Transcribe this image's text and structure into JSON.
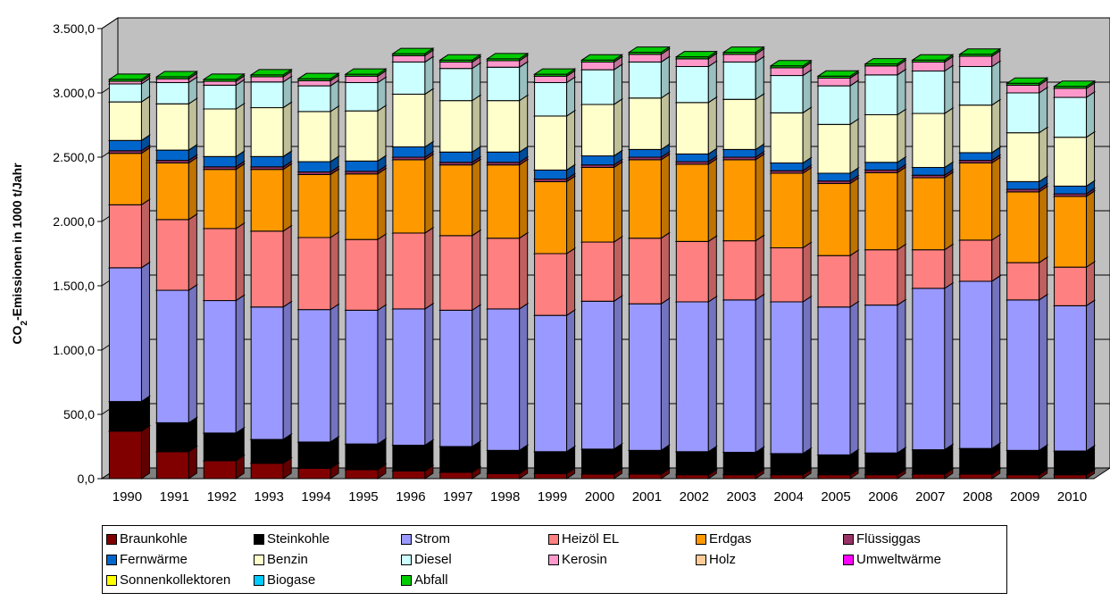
{
  "chart_data": {
    "type": "bar",
    "stacked": true,
    "three_d": true,
    "ylabel": "CO2-Emissionen in 1000 t/Jahr",
    "ylabel_main": "CO",
    "ylabel_sub": "2",
    "ylabel_rest": "-Emissionen in 1000 t/Jahr",
    "ylim": [
      0,
      3500
    ],
    "yticks": [
      "0,0",
      "500,0",
      "1.000,0",
      "1.500,0",
      "2.000,0",
      "2.500,0",
      "3.000,0",
      "3.500,0"
    ],
    "grid": true,
    "legend_position": "bottom",
    "categories": [
      "1990",
      "1991",
      "1992",
      "1993",
      "1994",
      "1995",
      "1996",
      "1997",
      "1998",
      "1999",
      "2000",
      "2001",
      "2002",
      "2003",
      "2004",
      "2005",
      "2006",
      "2007",
      "2008",
      "2009",
      "2010"
    ],
    "series": [
      {
        "name": "Braunkohle",
        "color": "#800000",
        "values": [
          370,
          210,
          140,
          120,
          80,
          70,
          60,
          50,
          40,
          40,
          35,
          35,
          30,
          30,
          30,
          30,
          30,
          35,
          35,
          30,
          30
        ]
      },
      {
        "name": "Steinkohle",
        "color": "#000000",
        "values": [
          230,
          225,
          215,
          185,
          205,
          200,
          200,
          200,
          180,
          170,
          195,
          185,
          180,
          175,
          165,
          155,
          170,
          190,
          200,
          190,
          185
        ]
      },
      {
        "name": "Strom",
        "color": "#9999ff",
        "values": [
          1040,
          1030,
          1030,
          1030,
          1030,
          1040,
          1060,
          1060,
          1100,
          1060,
          1150,
          1140,
          1165,
          1185,
          1180,
          1150,
          1150,
          1255,
          1300,
          1170,
          1130
        ]
      },
      {
        "name": "Heizöl EL",
        "color": "#ff8080",
        "values": [
          490,
          550,
          560,
          590,
          560,
          550,
          590,
          580,
          550,
          480,
          460,
          510,
          470,
          460,
          420,
          400,
          430,
          300,
          320,
          290,
          300
        ]
      },
      {
        "name": "Erdgas",
        "color": "#ff9900",
        "values": [
          400,
          440,
          460,
          480,
          490,
          510,
          570,
          550,
          570,
          560,
          580,
          610,
          600,
          630,
          580,
          560,
          600,
          560,
          600,
          550,
          550
        ]
      },
      {
        "name": "Flüssiggas",
        "color": "#993366",
        "values": [
          20,
          20,
          20,
          20,
          20,
          20,
          20,
          20,
          20,
          20,
          20,
          20,
          20,
          20,
          20,
          20,
          20,
          20,
          20,
          20,
          20
        ]
      },
      {
        "name": "Fernwärme",
        "color": "#0066cc",
        "values": [
          80,
          80,
          80,
          80,
          80,
          80,
          80,
          80,
          80,
          70,
          70,
          60,
          60,
          60,
          60,
          60,
          60,
          60,
          60,
          60,
          60
        ]
      },
      {
        "name": "Benzin",
        "color": "#ffffcc",
        "values": [
          300,
          360,
          370,
          380,
          390,
          390,
          410,
          400,
          400,
          420,
          400,
          400,
          400,
          390,
          390,
          380,
          370,
          420,
          370,
          380,
          380
        ]
      },
      {
        "name": "Diesel",
        "color": "#ccffff",
        "values": [
          140,
          165,
          185,
          200,
          200,
          220,
          250,
          250,
          260,
          260,
          270,
          280,
          280,
          290,
          290,
          300,
          310,
          330,
          300,
          310,
          310
        ]
      },
      {
        "name": "Kerosin",
        "color": "#ff99cc",
        "values": [
          20,
          30,
          30,
          40,
          40,
          50,
          50,
          50,
          50,
          50,
          60,
          60,
          60,
          60,
          60,
          60,
          70,
          70,
          80,
          60,
          70
        ]
      },
      {
        "name": "Holz",
        "color": "#ffcc99",
        "values": [
          0,
          0,
          0,
          0,
          0,
          0,
          0,
          0,
          0,
          0,
          0,
          0,
          0,
          0,
          0,
          0,
          0,
          0,
          0,
          0,
          0
        ]
      },
      {
        "name": "Umweltwärme",
        "color": "#ff00ff",
        "values": [
          0,
          0,
          0,
          0,
          0,
          0,
          0,
          0,
          0,
          0,
          0,
          0,
          0,
          0,
          0,
          0,
          0,
          0,
          0,
          0,
          0
        ]
      },
      {
        "name": "Sonnenkollektoren",
        "color": "#ffff00",
        "values": [
          0,
          0,
          0,
          0,
          0,
          0,
          0,
          0,
          0,
          0,
          0,
          0,
          0,
          0,
          0,
          0,
          0,
          0,
          0,
          0,
          0
        ]
      },
      {
        "name": "Biogase",
        "color": "#00ccff",
        "values": [
          0,
          0,
          0,
          0,
          0,
          0,
          0,
          0,
          0,
          0,
          0,
          0,
          0,
          0,
          0,
          0,
          0,
          0,
          0,
          0,
          0
        ]
      },
      {
        "name": "Abfall",
        "color": "#00cc00",
        "values": [
          15,
          15,
          15,
          15,
          15,
          15,
          15,
          15,
          15,
          15,
          15,
          15,
          15,
          15,
          15,
          15,
          15,
          15,
          15,
          15,
          15
        ]
      }
    ]
  },
  "colors": {
    "plot_wall": "#c0c0c0",
    "plot_floor": "#808080",
    "gridline": "#000000"
  }
}
